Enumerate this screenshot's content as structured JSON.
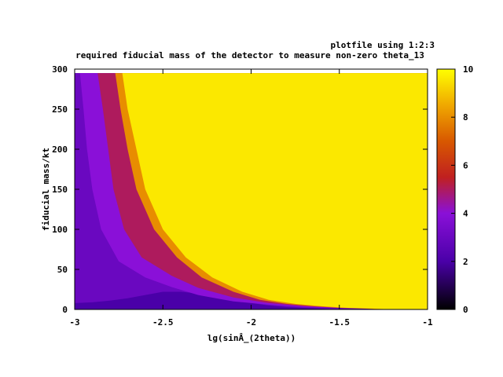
{
  "chart_data": {
    "type": "heatmap",
    "title": "required fiducial mass of the detector to measure non-zero theta_13",
    "key_title": "plotfile using 1:2:3",
    "xlabel": "lg(sinÂ_(2theta))",
    "ylabel": "fiducial mass/kt",
    "xlim": [
      -3,
      -1
    ],
    "ylim": [
      0,
      300
    ],
    "zlim": [
      0,
      10
    ],
    "x_ticks": [
      -3,
      -2.5,
      -2,
      -1.5,
      -1
    ],
    "x_tick_labels": [
      "-3",
      "-2.5",
      "-2",
      "-1.5",
      "-1"
    ],
    "y_ticks": [
      0,
      50,
      100,
      150,
      200,
      250,
      300
    ],
    "y_tick_labels": [
      "0",
      "50",
      "100",
      "150",
      "200",
      "250",
      "300"
    ],
    "colorbar_ticks": [
      0,
      2,
      4,
      6,
      8,
      10
    ],
    "colorbar_tick_labels": [
      "0",
      "2",
      "4",
      "6",
      "8",
      "10"
    ],
    "data_x_range": [
      -3,
      -1
    ],
    "data_y_range": [
      0,
      295
    ],
    "colormap": "gnuplot default (black-purple-red-yellow)",
    "saturated_value": 10,
    "contours": [
      {
        "level": 3,
        "points": [
          [
            -3.0,
            8
          ],
          [
            -2.9,
            9
          ],
          [
            -2.8,
            11
          ],
          [
            -2.7,
            14
          ],
          [
            -2.6,
            18
          ],
          [
            -2.5,
            22
          ],
          [
            -2.4,
            22
          ],
          [
            -2.3,
            20
          ],
          [
            -2.2,
            16
          ],
          [
            -2.1,
            12
          ],
          [
            -2.0,
            8
          ],
          [
            -1.9,
            5
          ],
          [
            -1.8,
            3
          ],
          [
            -1.7,
            2
          ],
          [
            -1.6,
            1
          ],
          [
            -1.5,
            0
          ]
        ]
      },
      {
        "level": 4,
        "points": [
          [
            -2.97,
            295
          ],
          [
            -2.95,
            250
          ],
          [
            -2.93,
            200
          ],
          [
            -2.9,
            150
          ],
          [
            -2.85,
            100
          ],
          [
            -2.75,
            60
          ],
          [
            -2.6,
            40
          ],
          [
            -2.45,
            28
          ],
          [
            -2.3,
            18
          ],
          [
            -2.1,
            10
          ],
          [
            -1.9,
            6
          ],
          [
            -1.7,
            3
          ],
          [
            -1.5,
            2
          ],
          [
            -1.3,
            1
          ],
          [
            -1.2,
            0
          ]
        ]
      },
      {
        "level": 5,
        "points": [
          [
            -2.87,
            295
          ],
          [
            -2.84,
            250
          ],
          [
            -2.81,
            200
          ],
          [
            -2.78,
            150
          ],
          [
            -2.72,
            100
          ],
          [
            -2.62,
            65
          ],
          [
            -2.45,
            42
          ],
          [
            -2.3,
            27
          ],
          [
            -2.1,
            15
          ],
          [
            -1.9,
            8
          ],
          [
            -1.7,
            4
          ],
          [
            -1.5,
            2
          ],
          [
            -1.3,
            1
          ],
          [
            -1.2,
            0
          ]
        ]
      },
      {
        "level": 8,
        "points": [
          [
            -2.77,
            295
          ],
          [
            -2.74,
            250
          ],
          [
            -2.7,
            200
          ],
          [
            -2.65,
            150
          ],
          [
            -2.55,
            100
          ],
          [
            -2.42,
            65
          ],
          [
            -2.28,
            40
          ],
          [
            -2.1,
            22
          ],
          [
            -1.95,
            12
          ],
          [
            -1.8,
            7
          ],
          [
            -1.65,
            4
          ],
          [
            -1.5,
            2
          ],
          [
            -1.35,
            1
          ],
          [
            -1.25,
            0
          ]
        ]
      },
      {
        "level": 9.6,
        "points": [
          [
            -2.73,
            295
          ],
          [
            -2.7,
            250
          ],
          [
            -2.65,
            200
          ],
          [
            -2.6,
            150
          ],
          [
            -2.5,
            100
          ],
          [
            -2.37,
            65
          ],
          [
            -2.22,
            40
          ],
          [
            -2.05,
            22
          ],
          [
            -1.9,
            12
          ],
          [
            -1.75,
            7
          ],
          [
            -1.6,
            4
          ],
          [
            -1.45,
            2
          ],
          [
            -1.3,
            1
          ],
          [
            -1.2,
            0
          ]
        ]
      }
    ]
  }
}
